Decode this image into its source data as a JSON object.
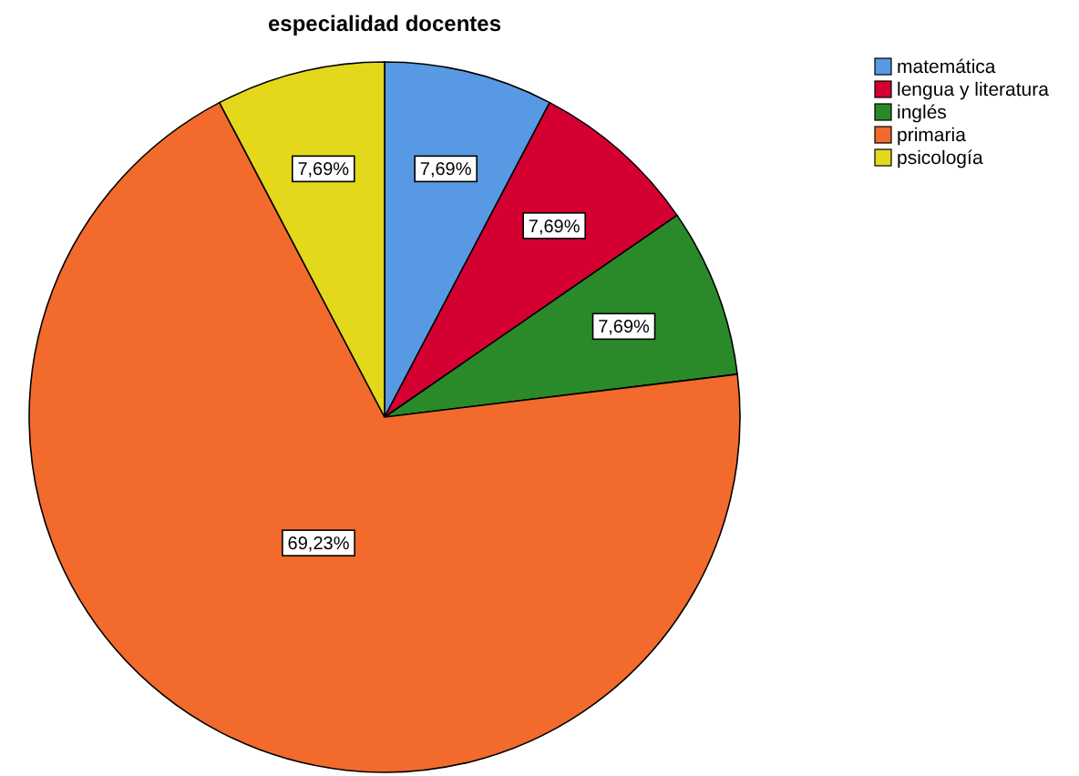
{
  "chart_data": {
    "type": "pie",
    "title": "especialidad docentes",
    "categories": [
      "matemática",
      "lengua y literatura",
      "inglés",
      "primaria",
      "psicología"
    ],
    "values": [
      7.69,
      7.69,
      7.69,
      69.23,
      7.69
    ],
    "value_labels": [
      "7,69%",
      "7,69%",
      "7,69%",
      "69,23%",
      "7,69%"
    ],
    "colors": [
      "#5899e3",
      "#d50032",
      "#2a8a2a",
      "#f26a2c",
      "#e4d81c"
    ],
    "legend": "top right"
  }
}
